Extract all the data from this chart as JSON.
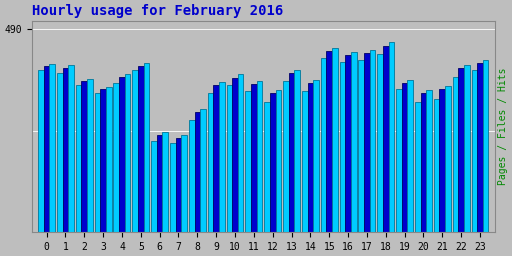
{
  "title": "Hourly usage for February 2016",
  "hours": [
    0,
    1,
    2,
    3,
    4,
    5,
    6,
    7,
    8,
    9,
    10,
    11,
    12,
    13,
    14,
    15,
    16,
    17,
    18,
    19,
    20,
    21,
    22,
    23
  ],
  "pages": [
    390,
    385,
    355,
    335,
    360,
    390,
    220,
    215,
    270,
    335,
    355,
    340,
    315,
    365,
    340,
    420,
    410,
    415,
    430,
    345,
    315,
    320,
    375,
    390
  ],
  "files": [
    400,
    395,
    365,
    345,
    375,
    400,
    235,
    228,
    290,
    355,
    372,
    358,
    335,
    385,
    360,
    438,
    428,
    432,
    448,
    360,
    335,
    345,
    395,
    408
  ],
  "hits": [
    405,
    403,
    370,
    350,
    382,
    408,
    242,
    235,
    298,
    362,
    382,
    365,
    342,
    392,
    368,
    445,
    435,
    440,
    458,
    368,
    342,
    352,
    402,
    415
  ],
  "pages_color": "#00ccff",
  "files_color": "#0000cc",
  "hits_color": "#008800",
  "bg_color": "#bebebe",
  "plot_bg_color": "#bebebe",
  "title_color": "#0000cc",
  "ylabel": "Pages / Files / Hits",
  "ylabel_color": "#008800",
  "bar_width": 0.3,
  "ylim_min": 0,
  "ylim_max": 510,
  "ytick_val": 490,
  "ytick_label": "490",
  "grid_color": "#aaaaaa",
  "title_fontsize": 10,
  "tick_fontsize": 7
}
